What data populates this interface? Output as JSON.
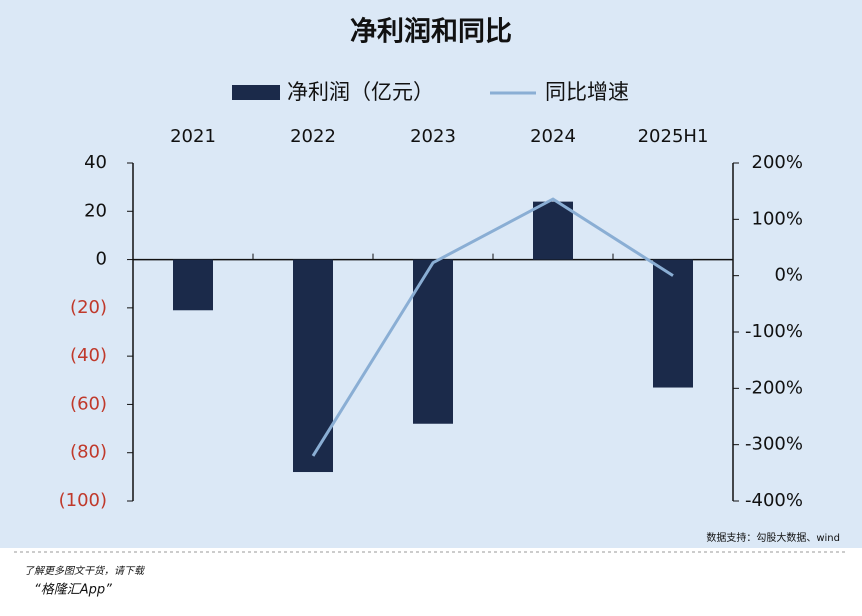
{
  "chart_data": {
    "type": "bar_line",
    "title": "净利润和同比",
    "categories": [
      "2021",
      "2022",
      "2023",
      "2024",
      "2025H1"
    ],
    "series": [
      {
        "name": "净利润（亿元）",
        "color": "#1b2a4a",
        "type": "bar",
        "values": [
          -21,
          -88,
          -68,
          24,
          -53
        ]
      },
      {
        "name": "同比增速",
        "color": "#8aaed4",
        "type": "line",
        "axis": "y2",
        "values": [
          null,
          -320,
          23,
          136,
          0
        ]
      }
    ],
    "ylim": [
      -100,
      40
    ],
    "yticks": [
      {
        "value": -100,
        "label": "(100)"
      },
      {
        "value": -80,
        "label": "(80)"
      },
      {
        "value": -60,
        "label": "(60)"
      },
      {
        "value": -40,
        "label": "(40)"
      },
      {
        "value": -20,
        "label": "(20)"
      },
      0,
      20,
      40
    ],
    "negative_tick_color": "#c0392b",
    "y2lim": [
      -400,
      200
    ],
    "y2ticks": [
      {
        "value": -400,
        "label": "-400%"
      },
      {
        "value": -300,
        "label": "-300%"
      },
      {
        "value": -200,
        "label": "-200%"
      },
      {
        "value": -100,
        "label": "-100%"
      },
      {
        "value": 0,
        "label": "0%"
      },
      {
        "value": 100,
        "label": "100%"
      },
      {
        "value": 200,
        "label": "200%"
      }
    ],
    "source": "数据支持：勾股大数据、wind",
    "footer_line1": "了解更多图文干货，请下载",
    "footer_line2": "“格隆汇App”"
  }
}
